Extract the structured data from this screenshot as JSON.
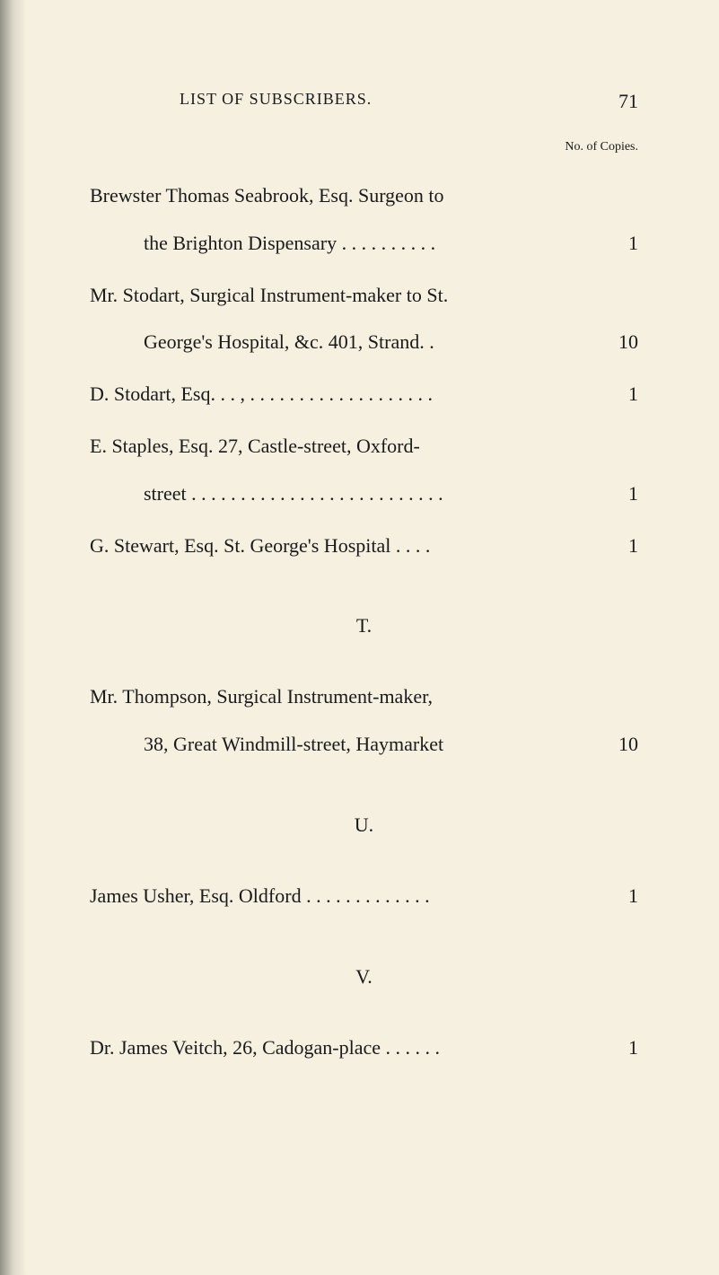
{
  "header": {
    "title": "LIST OF SUBSCRIBERS.",
    "page_number": "71",
    "copies_label": "No. of Copies."
  },
  "entries": {
    "brewster_line1": "Brewster Thomas Seabrook, Esq. Surgeon to",
    "brewster_line2": "the Brighton Dispensary . . . . . . . . . .",
    "brewster_value": "1",
    "stodart_mr_line1": "Mr. Stodart, Surgical Instrument-maker to St.",
    "stodart_mr_line2": "George's Hospital, &c. 401, Strand. .",
    "stodart_mr_value": "10",
    "stodart_d": "D. Stodart, Esq. . . , . . . . . . . . . . . . . . . . . . .",
    "stodart_d_value": "1",
    "staples_line1": "E. Staples, Esq. 27, Castle-street, Oxford-",
    "staples_line2": "street . . . . . . . . . . . . . . . . . . . . . . . . . .",
    "staples_value": "1",
    "stewart": "G. Stewart, Esq. St. George's Hospital . . . .",
    "stewart_value": "1"
  },
  "sections": {
    "t": "T.",
    "u": "U.",
    "v": "V."
  },
  "section_t": {
    "thompson_line1": "Mr. Thompson, Surgical Instrument-maker,",
    "thompson_line2": "38, Great Windmill-street, Haymarket",
    "thompson_value": "10"
  },
  "section_u": {
    "usher": "James Usher, Esq. Oldford . . . . . . . . . . . . .",
    "usher_value": "1"
  },
  "section_v": {
    "veitch": "Dr. James Veitch, 26, Cadogan-place . . . . . .",
    "veitch_value": "1"
  }
}
